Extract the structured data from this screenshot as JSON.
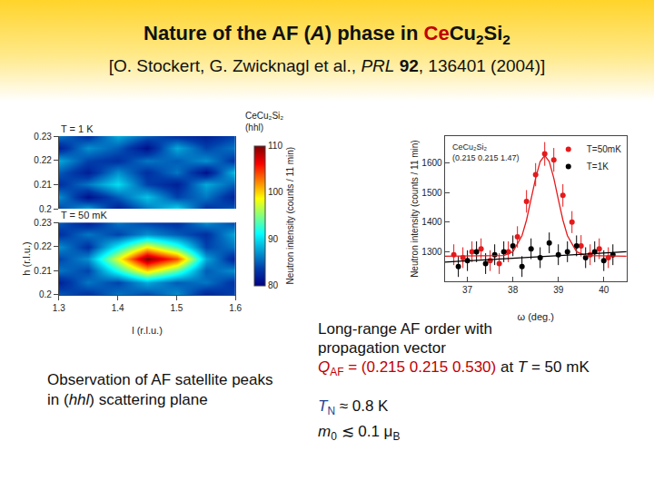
{
  "header": {
    "title": [
      {
        "text": "Nature of the AF ("
      },
      {
        "text": "A",
        "style": "italic"
      },
      {
        "text": ") phase in "
      },
      {
        "text": "Ce",
        "color": "#c00000"
      },
      {
        "text": "Cu"
      },
      {
        "text": "2",
        "style": "sub"
      },
      {
        "text": "Si"
      },
      {
        "text": "2",
        "style": "sub"
      }
    ],
    "citation": [
      {
        "text": "[O. Stockert, G. Zwicknagl et al., "
      },
      {
        "text": "PRL",
        "style": "italic"
      },
      {
        "text": " "
      },
      {
        "text": "92",
        "style": "bold"
      },
      {
        "text": ", 136401 (2004)]"
      }
    ]
  },
  "texts": {
    "left": [
      [
        {
          "text": "Observation of AF satellite peaks"
        }
      ],
      [
        {
          "text": "in ("
        },
        {
          "text": "hhl",
          "style": "italic"
        },
        {
          "text": ") scattering plane"
        }
      ]
    ],
    "right": [
      [
        {
          "text": "Long-range AF order with"
        }
      ],
      [
        {
          "text": "propagation vector"
        }
      ],
      [
        {
          "text": "Q",
          "style": "italic",
          "color": "#c00000"
        },
        {
          "text": "AF",
          "style": "sub",
          "color": "#c00000"
        },
        {
          "text": " = (0.215 0.215 0.530)",
          "color": "#c00000"
        },
        {
          "text": " at "
        },
        {
          "text": "T",
          "style": "italic"
        },
        {
          "text": " = 50 m"
        },
        {
          "text": "K"
        }
      ],
      null,
      [
        {
          "text": "T",
          "style": "italic",
          "color": "#1f3f8f"
        },
        {
          "text": "N",
          "style": "sub",
          "color": "#1f3f8f"
        },
        {
          "text": " ≈ 0.8 K"
        }
      ],
      [
        {
          "text": "m",
          "style": "italic"
        },
        {
          "text": "0",
          "style": "sub"
        },
        {
          "text": " ≲ 0.1 μ"
        },
        {
          "text": "B",
          "style": "sub"
        }
      ]
    ]
  },
  "chart_data": [
    {
      "type": "heatmap",
      "annotation": [
        "CeCu₂Si₂",
        "(hhl)"
      ],
      "x_label": "l (r.l.u.)",
      "y_label": "h (r.l.u.)",
      "x": [
        1.3,
        1.35,
        1.4,
        1.45,
        1.5,
        1.55,
        1.6
      ],
      "y": [
        0.2,
        0.205,
        0.21,
        0.215,
        0.22,
        0.225,
        0.23
      ],
      "xlim": [
        1.3,
        1.6
      ],
      "xticks": [
        1.3,
        1.4,
        1.5,
        1.6
      ],
      "ylim": [
        0.2,
        0.23
      ],
      "yticks": [
        0.2,
        0.21,
        0.22,
        0.23
      ],
      "colorbar_range": [
        80,
        110
      ],
      "colorbar_ticks": [
        80,
        90,
        100,
        110
      ],
      "colorbar_label": "Neutron intensity (counts / 11 min)",
      "color": "Jet",
      "panels": [
        {
          "label": "T = 1 K",
          "cells": [
            [
              84,
              88,
              82,
              86,
              90,
              83,
              85
            ],
            [
              87,
              81,
              85,
              89,
              84,
              86,
              82
            ],
            [
              83,
              86,
              90,
              84,
              82,
              88,
              85
            ],
            [
              85,
              82,
              87,
              83,
              86,
              81,
              89
            ],
            [
              88,
              84,
              83,
              86,
              85,
              87,
              83
            ],
            [
              82,
              87,
              85,
              81,
              88,
              84,
              86
            ],
            [
              86,
              83,
              88,
              85,
              83,
              82,
              84
            ]
          ]
        },
        {
          "label": "T = 50 mK",
          "cells": [
            [
              85,
              83,
              86,
              84,
              87,
              82,
              84
            ],
            [
              82,
              86,
              84,
              88,
              85,
              86,
              83
            ],
            [
              86,
              84,
              92,
              100,
              94,
              85,
              87
            ],
            [
              84,
              87,
              98,
              110,
              104,
              88,
              82
            ],
            [
              87,
              83,
              91,
              99,
              93,
              84,
              86
            ],
            [
              83,
              86,
              84,
              87,
              85,
              83,
              88
            ],
            [
              85,
              82,
              86,
              84,
              83,
              87,
              84
            ]
          ]
        }
      ]
    },
    {
      "type": "scatter",
      "annotation": [
        "CeCu₂Si₂",
        "(0.215 0.215 1.47)"
      ],
      "x_label": "ω (deg.)",
      "y_label": "Neutron intensity (counts / 11 min)",
      "xlim": [
        36.5,
        40.5
      ],
      "xticks": [
        37,
        38,
        39,
        40
      ],
      "ylim": [
        1200,
        1690
      ],
      "yticks": [
        1300,
        1400,
        1500,
        1600
      ],
      "legend": "top right",
      "marker": "circle",
      "series": [
        {
          "name": "T=50mK",
          "color": "#e41a1c",
          "x": [
            36.7,
            36.9,
            37.1,
            37.3,
            37.5,
            37.7,
            37.9,
            38.1,
            38.3,
            38.5,
            38.7,
            38.9,
            39.1,
            39.3,
            39.5,
            39.7,
            39.9,
            40.1
          ],
          "values": [
            1290,
            1280,
            1300,
            1310,
            1270,
            1260,
            1300,
            1350,
            1470,
            1560,
            1630,
            1610,
            1490,
            1400,
            1320,
            1290,
            1310,
            1280
          ],
          "errors": [
            35,
            35,
            35,
            35,
            35,
            35,
            35,
            36,
            38,
            39,
            40,
            40,
            38,
            37,
            36,
            35,
            35,
            35
          ]
        },
        {
          "name": "T=1K",
          "color": "#000000",
          "x": [
            36.8,
            37.0,
            37.2,
            37.4,
            37.6,
            37.8,
            38.0,
            38.2,
            38.4,
            38.6,
            38.8,
            39.0,
            39.2,
            39.4,
            39.6,
            39.8,
            40.0,
            40.2
          ],
          "values": [
            1250,
            1270,
            1300,
            1260,
            1290,
            1300,
            1320,
            1250,
            1310,
            1280,
            1330,
            1290,
            1300,
            1320,
            1280,
            1300,
            1270,
            1290
          ],
          "errors": [
            35,
            35,
            35,
            35,
            35,
            35,
            35,
            35,
            35,
            35,
            35,
            35,
            35,
            35,
            35,
            35,
            35,
            35
          ]
        }
      ],
      "fits": [
        {
          "type": "line",
          "color": "#e41a1c",
          "x": [
            36.5,
            37.5,
            37.8,
            38.0,
            38.2,
            38.3,
            38.4,
            38.5,
            38.6,
            38.7,
            38.8,
            38.9,
            39.0,
            39.1,
            39.2,
            39.4,
            39.6,
            40.5
          ],
          "values": [
            1285,
            1285,
            1287,
            1300,
            1354,
            1407,
            1476,
            1548,
            1604,
            1625,
            1604,
            1548,
            1476,
            1407,
            1354,
            1300,
            1287,
            1285
          ]
        },
        {
          "type": "line",
          "color": "#000000",
          "x": [
            36.5,
            40.5
          ],
          "values": [
            1265,
            1300
          ]
        }
      ]
    }
  ]
}
